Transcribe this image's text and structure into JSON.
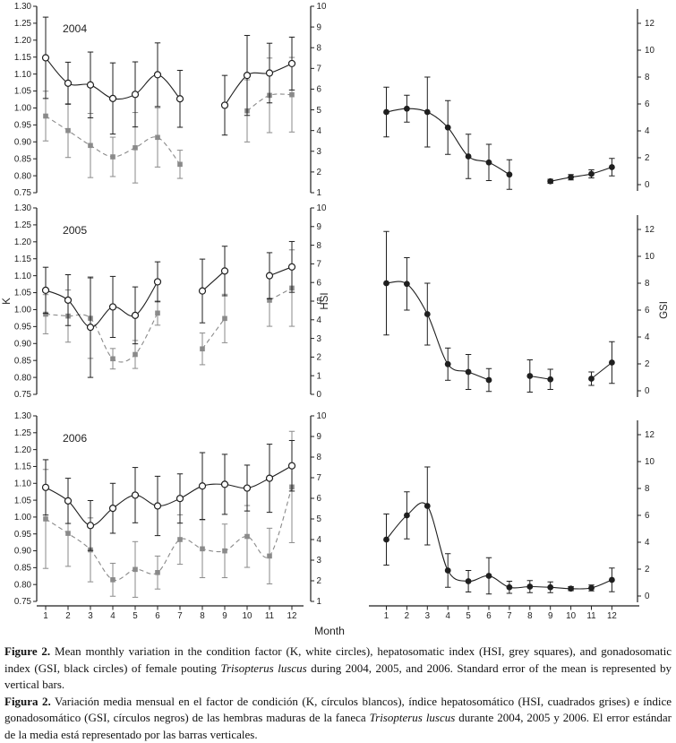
{
  "colors": {
    "ink": "#1f1f1f",
    "grey": "#8a8a8a",
    "white": "#ffffff",
    "background": "#ffffff"
  },
  "figure": {
    "x_label": "Month",
    "x_ticks": [
      1,
      2,
      3,
      4,
      5,
      6,
      7,
      8,
      9,
      10,
      11,
      12
    ]
  },
  "chart_data": [
    {
      "type": "line",
      "panel": "2004-K-HSI",
      "row": 0,
      "col": "left",
      "title": "2004",
      "left_axis": {
        "label": "",
        "min": 0.75,
        "max": 1.3,
        "step": 0.05,
        "decimals": 2
      },
      "right_axis": {
        "label": "",
        "min": 1,
        "max": 10,
        "step": 1,
        "decimals": 0
      },
      "series": [
        {
          "name": "K (condition factor, white circles)",
          "axis": "left",
          "marker": "circle-open",
          "line": "solid",
          "color_key": "ink",
          "months": [
            1,
            2,
            3,
            4,
            5,
            6,
            7,
            9,
            10,
            11,
            12
          ],
          "values": [
            1.148,
            1.073,
            1.068,
            1.028,
            1.04,
            1.098,
            1.027,
            1.008,
            1.096,
            1.103,
            1.131
          ],
          "stderr": [
            0.12,
            0.062,
            0.097,
            0.105,
            0.096,
            0.094,
            0.084,
            0.088,
            0.118,
            0.088,
            0.078
          ]
        },
        {
          "name": "HSI (hepatosomatic index, grey squares)",
          "axis": "right",
          "marker": "square-filled",
          "line": "dashed",
          "color_key": "grey",
          "months": [
            1,
            2,
            3,
            4,
            5,
            6,
            7,
            10,
            11,
            12
          ],
          "values": [
            4.7,
            4.0,
            3.28,
            2.73,
            3.17,
            3.67,
            2.37,
            4.95,
            5.7,
            5.73
          ],
          "stderr": [
            1.2,
            1.3,
            1.55,
            0.95,
            1.7,
            1.43,
            0.68,
            1.5,
            1.8,
            1.8
          ]
        }
      ]
    },
    {
      "type": "line",
      "panel": "2004-GSI",
      "row": 0,
      "col": "right",
      "title": "",
      "right_axis": {
        "label": "",
        "min": 0,
        "max": 12,
        "step": 2,
        "decimals": 0
      },
      "series": [
        {
          "name": "GSI (gonadosomatic index, black circles)",
          "axis": "right",
          "marker": "circle-filled",
          "line": "solid",
          "color_key": "ink",
          "months": [
            1,
            2,
            3,
            4,
            5,
            6,
            7,
            9,
            10,
            11,
            12
          ],
          "values": [
            5.4,
            5.65,
            5.4,
            4.25,
            2.1,
            1.65,
            0.75,
            0.25,
            0.55,
            0.8,
            1.3
          ],
          "stderr": [
            1.85,
            1.0,
            2.6,
            2.0,
            1.65,
            1.35,
            1.1,
            0.15,
            0.2,
            0.3,
            0.65
          ]
        }
      ]
    },
    {
      "type": "line",
      "panel": "2005-K-HSI",
      "row": 1,
      "col": "left",
      "title": "2005",
      "left_axis": {
        "label": "K",
        "min": 0.75,
        "max": 1.3,
        "step": 0.05,
        "decimals": 2
      },
      "right_axis": {
        "label": "HSI",
        "min": 0,
        "max": 10,
        "step": 1,
        "decimals": 0
      },
      "series": [
        {
          "name": "K (condition factor, white circles)",
          "axis": "left",
          "marker": "circle-open",
          "line": "solid",
          "color_key": "ink",
          "months": [
            1,
            2,
            3,
            4,
            5,
            6,
            8,
            9,
            11,
            12
          ],
          "values": [
            1.057,
            1.028,
            0.948,
            1.008,
            0.983,
            1.082,
            1.055,
            1.114,
            1.1,
            1.126
          ],
          "stderr": [
            0.068,
            0.075,
            0.148,
            0.09,
            0.084,
            0.059,
            0.094,
            0.073,
            0.068,
            0.075
          ]
        },
        {
          "name": "HSI (hepatosomatic index, grey squares)",
          "axis": "right",
          "marker": "square-filled",
          "line": "dashed",
          "color_key": "grey",
          "months": [
            1,
            2,
            3,
            4,
            5,
            6,
            8,
            9,
            11,
            12
          ],
          "values": [
            4.3,
            4.2,
            4.08,
            1.91,
            2.14,
            4.36,
            2.44,
            4.07,
            5.05,
            5.7
          ],
          "stderr": [
            1.05,
            1.4,
            2.15,
            0.55,
            0.75,
            0.65,
            0.85,
            1.3,
            1.4,
            2.05
          ]
        }
      ]
    },
    {
      "type": "line",
      "panel": "2005-GSI",
      "row": 1,
      "col": "right",
      "title": "",
      "right_axis": {
        "label": "GSI",
        "min": 0,
        "max": 12,
        "step": 2,
        "decimals": 0
      },
      "series": [
        {
          "name": "GSI (gonadosomatic index, black circles)",
          "axis": "right",
          "marker": "circle-filled",
          "line": "solid",
          "color_key": "ink",
          "months": [
            1,
            2,
            3,
            4,
            5,
            6,
            8,
            9,
            11,
            12
          ],
          "values": [
            8.0,
            7.95,
            5.7,
            1.98,
            1.4,
            0.8,
            1.1,
            0.85,
            0.9,
            2.1
          ],
          "stderr": [
            3.85,
            1.95,
            2.3,
            1.2,
            1.3,
            0.85,
            1.2,
            0.75,
            0.5,
            1.55
          ]
        }
      ]
    },
    {
      "type": "line",
      "panel": "2006-K-HSI",
      "row": 2,
      "col": "left",
      "title": "2006",
      "left_axis": {
        "label": "",
        "min": 0.75,
        "max": 1.3,
        "step": 0.05,
        "decimals": 2
      },
      "right_axis": {
        "label": "",
        "min": 1,
        "max": 10,
        "step": 1,
        "decimals": 0
      },
      "series": [
        {
          "name": "K (condition factor, white circles)",
          "axis": "left",
          "marker": "circle-open",
          "line": "solid",
          "color_key": "ink",
          "months": [
            1,
            2,
            3,
            4,
            5,
            6,
            7,
            8,
            9,
            10,
            11,
            12
          ],
          "values": [
            1.088,
            1.048,
            0.975,
            1.026,
            1.065,
            1.033,
            1.055,
            1.092,
            1.097,
            1.086,
            1.115,
            1.152
          ],
          "stderr": [
            0.082,
            0.067,
            0.074,
            0.074,
            0.082,
            0.088,
            0.073,
            0.099,
            0.089,
            0.068,
            0.101,
            0.075
          ]
        },
        {
          "name": "HSI (hepatosomatic index, grey squares)",
          "axis": "right",
          "marker": "square-filled",
          "line": "dashed",
          "color_key": "grey",
          "months": [
            1,
            2,
            3,
            4,
            5,
            6,
            7,
            8,
            9,
            10,
            11,
            12
          ],
          "values": [
            5.0,
            4.3,
            3.5,
            2.05,
            2.55,
            2.4,
            4.0,
            3.55,
            3.45,
            4.15,
            3.2,
            6.55
          ],
          "stderr": [
            2.4,
            1.6,
            1.55,
            0.8,
            1.35,
            0.8,
            1.2,
            1.4,
            1.3,
            1.5,
            1.35,
            2.7
          ]
        }
      ]
    },
    {
      "type": "line",
      "panel": "2006-GSI",
      "row": 2,
      "col": "right",
      "title": "",
      "right_axis": {
        "label": "",
        "min": 0,
        "max": 12,
        "step": 2,
        "decimals": 0
      },
      "series": [
        {
          "name": "GSI (gonadosomatic index, black circles)",
          "axis": "right",
          "marker": "circle-filled",
          "line": "solid",
          "color_key": "ink",
          "months": [
            1,
            2,
            3,
            4,
            5,
            6,
            7,
            8,
            9,
            10,
            11,
            12
          ],
          "values": [
            4.2,
            6.0,
            6.7,
            1.9,
            1.1,
            1.5,
            0.65,
            0.7,
            0.65,
            0.55,
            0.6,
            1.2
          ],
          "stderr": [
            1.9,
            1.75,
            2.9,
            1.25,
            0.8,
            1.35,
            0.45,
            0.45,
            0.4,
            0.15,
            0.22,
            0.88
          ]
        }
      ]
    }
  ],
  "captions": {
    "english": [
      {
        "t": "Figure 2.",
        "b": true
      },
      {
        "t": " Mean monthly variation in the condition factor (K, white circles), hepatosomatic index (HSI, grey squares), and gonadosomatic index (GSI, black circles) of female pouting "
      },
      {
        "t": "Trisopterus luscus",
        "i": true
      },
      {
        "t": " during 2004, 2005, and 2006. Standard error of the mean is represented by vertical bars."
      }
    ],
    "spanish": [
      {
        "t": "Figura 2.",
        "b": true
      },
      {
        "t": " Variación media mensual en el factor de condición (K, círculos blancos), índice hepatosomático (HSI, cuadrados grises) e índice gonadosomático (GSI, círculos negros) de las hembras maduras de la faneca "
      },
      {
        "t": "Trisopterus luscus",
        "i": true
      },
      {
        "t": " durante 2004, 2005 y 2006. El error estándar de la media está representado por las barras verticales."
      }
    ]
  }
}
